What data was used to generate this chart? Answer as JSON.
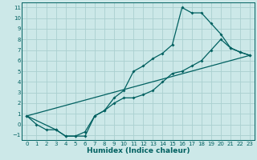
{
  "xlabel": "Humidex (Indice chaleur)",
  "bg_color": "#cce8e8",
  "grid_color": "#aad0d0",
  "line_color": "#006060",
  "spine_color": "#006060",
  "xlim": [
    -0.5,
    23.5
  ],
  "ylim": [
    -1.5,
    11.5
  ],
  "xticks": [
    0,
    1,
    2,
    3,
    4,
    5,
    6,
    7,
    8,
    9,
    10,
    11,
    12,
    13,
    14,
    15,
    16,
    17,
    18,
    19,
    20,
    21,
    22,
    23
  ],
  "yticks": [
    -1,
    0,
    1,
    2,
    3,
    4,
    5,
    6,
    7,
    8,
    9,
    10,
    11
  ],
  "line1_x": [
    0,
    1,
    2,
    3,
    4,
    5,
    6,
    7,
    8,
    9,
    10,
    11,
    12,
    13,
    14,
    15,
    16,
    17,
    18,
    19,
    20,
    21,
    22,
    23
  ],
  "line1_y": [
    0.8,
    0.0,
    -0.5,
    -0.5,
    -1.1,
    -1.1,
    -1.1,
    0.8,
    1.3,
    2.5,
    3.2,
    5.0,
    5.5,
    6.2,
    6.7,
    7.5,
    11.0,
    10.5,
    10.5,
    9.5,
    8.5,
    7.2,
    6.8,
    6.5
  ],
  "line2_x": [
    0,
    3,
    4,
    5,
    6,
    7,
    8,
    9,
    10,
    11,
    12,
    13,
    14,
    15,
    16,
    17,
    18,
    19,
    20,
    21,
    22,
    23
  ],
  "line2_y": [
    0.8,
    -0.5,
    -1.1,
    -1.1,
    -0.7,
    0.8,
    1.3,
    2.0,
    2.5,
    2.5,
    2.8,
    3.2,
    4.0,
    4.8,
    5.0,
    5.5,
    6.0,
    7.0,
    8.0,
    7.2,
    6.8,
    6.5
  ],
  "line3_x": [
    0,
    23
  ],
  "line3_y": [
    0.8,
    6.5
  ],
  "tick_fontsize": 5.0,
  "xlabel_fontsize": 6.5
}
